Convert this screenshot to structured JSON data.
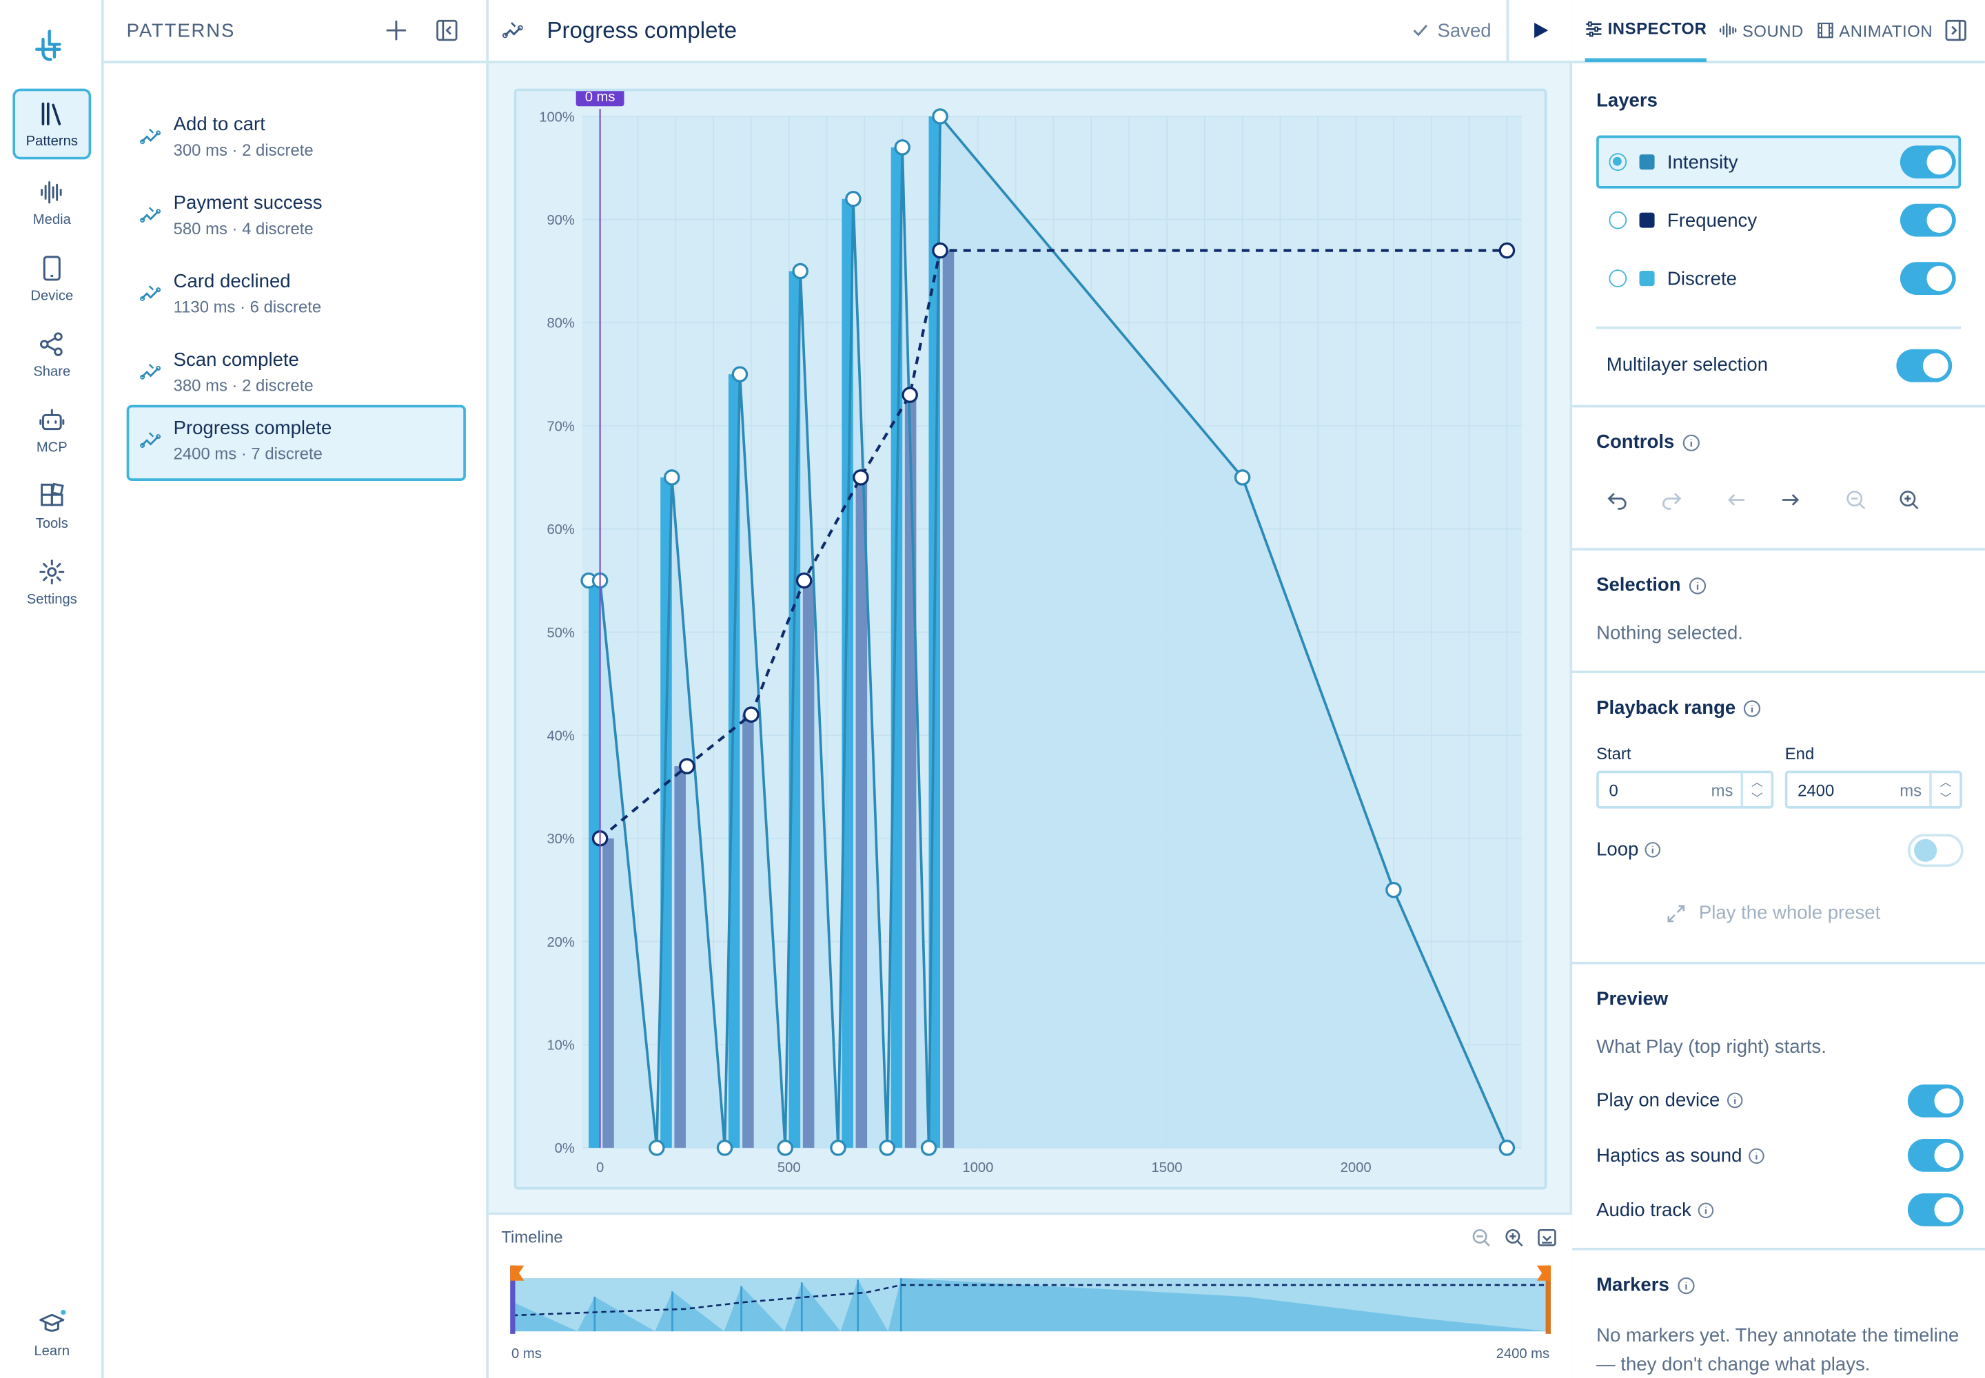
{
  "rail": {
    "items": [
      {
        "label": "Patterns",
        "icon": "library-icon",
        "active": true
      },
      {
        "label": "Media",
        "icon": "waveform-icon"
      },
      {
        "label": "Device",
        "icon": "phone-icon"
      },
      {
        "label": "Share",
        "icon": "share-icon"
      },
      {
        "label": "MCP",
        "icon": "robot-icon"
      },
      {
        "label": "Tools",
        "icon": "tools-icon"
      },
      {
        "label": "Settings",
        "icon": "gear-icon"
      }
    ],
    "learn_label": "Learn"
  },
  "patterns": {
    "title": "PATTERNS",
    "items": [
      {
        "name": "Add to cart",
        "meta": "300 ms · 2 discrete"
      },
      {
        "name": "Payment success",
        "meta": "580 ms · 4 discrete"
      },
      {
        "name": "Card declined",
        "meta": "1130 ms · 6 discrete"
      },
      {
        "name": "Scan complete",
        "meta": "380 ms · 2 discrete"
      },
      {
        "name": "Progress complete",
        "meta": "2400 ms · 7 discrete",
        "active": true
      }
    ]
  },
  "editor": {
    "title": "Progress complete",
    "saved_label": "Saved",
    "playhead_label": "0 ms"
  },
  "chart_data": {
    "type": "line",
    "xlim": [
      0,
      2400
    ],
    "ylim": [
      0,
      100
    ],
    "x_ticks": [
      "0",
      "500",
      "1000",
      "1500",
      "2000"
    ],
    "y_ticks": [
      "0%",
      "10%",
      "20%",
      "30%",
      "40%",
      "50%",
      "60%",
      "70%",
      "80%",
      "90%",
      "100%"
    ],
    "intensity": {
      "color": "#2c8ab8",
      "x": [
        -30,
        0,
        150,
        190,
        330,
        370,
        490,
        530,
        630,
        670,
        760,
        800,
        870,
        900,
        1700,
        2100,
        2400
      ],
      "y": [
        55,
        55,
        0,
        65,
        0,
        75,
        0,
        85,
        0,
        92,
        0,
        97,
        0,
        100,
        65,
        25,
        0
      ]
    },
    "frequency": {
      "color": "#0d2a6b",
      "x": [
        0,
        230,
        400,
        540,
        690,
        820,
        900,
        2400
      ],
      "y": [
        30,
        37,
        42,
        55,
        65,
        73,
        87,
        87
      ]
    },
    "discrete": {
      "color": "#41b4dd",
      "bars": [
        {
          "x": 0,
          "intensity": 55,
          "sharpness": 30
        },
        {
          "x": 190,
          "intensity": 65,
          "sharpness": 37
        },
        {
          "x": 370,
          "intensity": 75,
          "sharpness": 42
        },
        {
          "x": 530,
          "intensity": 85,
          "sharpness": 55
        },
        {
          "x": 670,
          "intensity": 92,
          "sharpness": 65
        },
        {
          "x": 800,
          "intensity": 97,
          "sharpness": 73
        },
        {
          "x": 900,
          "intensity": 100,
          "sharpness": 87
        }
      ]
    }
  },
  "timeline": {
    "label": "Timeline",
    "start_label": "0 ms",
    "end_label": "2400 ms"
  },
  "inspector": {
    "tabs": [
      "INSPECTOR",
      "SOUND",
      "ANIMATION"
    ],
    "layers_title": "Layers",
    "layers": [
      {
        "name": "Intensity",
        "color": "#2c8ab8",
        "active": true
      },
      {
        "name": "Frequency",
        "color": "#0d2a6b"
      },
      {
        "name": "Discrete",
        "color": "#41b4dd"
      }
    ],
    "multilayer_label": "Multilayer selection",
    "controls_title": "Controls",
    "selection_title": "Selection",
    "selection_text": "Nothing selected.",
    "playback_title": "Playback range",
    "start_label": "Start",
    "end_label": "End",
    "start_value": "0",
    "end_value": "2400",
    "unit": "ms",
    "loop_label": "Loop",
    "play_whole_label": "Play the whole preset",
    "preview_title": "Preview",
    "preview_text": "What Play (top right) starts.",
    "play_on_device": "Play on device",
    "haptics_as_sound": "Haptics as sound",
    "audio_track": "Audio track",
    "markers_title": "Markers",
    "markers_text": "No markers yet. They annotate the timeline — they don't change what plays."
  }
}
